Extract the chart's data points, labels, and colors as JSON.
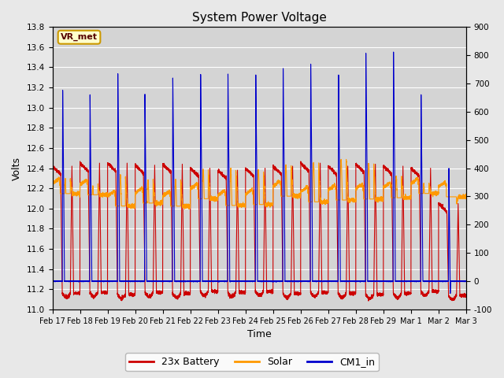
{
  "title": "System Power Voltage",
  "xlabel": "Time",
  "ylabel": "Volts",
  "ylim_left": [
    11.0,
    13.8
  ],
  "ylim_right": [
    -100,
    900
  ],
  "yticks_left": [
    11.0,
    11.2,
    11.4,
    11.6,
    11.8,
    12.0,
    12.2,
    12.4,
    12.6,
    12.8,
    13.0,
    13.2,
    13.4,
    13.6,
    13.8
  ],
  "yticks_right": [
    -100,
    0,
    100,
    200,
    300,
    400,
    500,
    600,
    700,
    800,
    900
  ],
  "xtick_labels": [
    "Feb 17",
    "Feb 18",
    "Feb 19",
    "Feb 20",
    "Feb 21",
    "Feb 22",
    "Feb 23",
    "Feb 24",
    "Feb 25",
    "Feb 26",
    "Feb 27",
    "Feb 28",
    "Feb 29",
    "Mar 1",
    "Mar 2",
    "Mar 3"
  ],
  "legend_labels": [
    "23x Battery",
    "Solar",
    "CM1_in"
  ],
  "battery_color": "#cc0000",
  "solar_color": "#ff9900",
  "cm1_color": "#0000cc",
  "background_color": "#e8e8e8",
  "plot_bg_color": "#d4d4d4",
  "grid_color": "#ffffff",
  "annotation_text": "VR_met",
  "annotation_bg": "#ffffcc",
  "annotation_border": "#cc9900",
  "n_days": 15,
  "pts_per_day": 480
}
